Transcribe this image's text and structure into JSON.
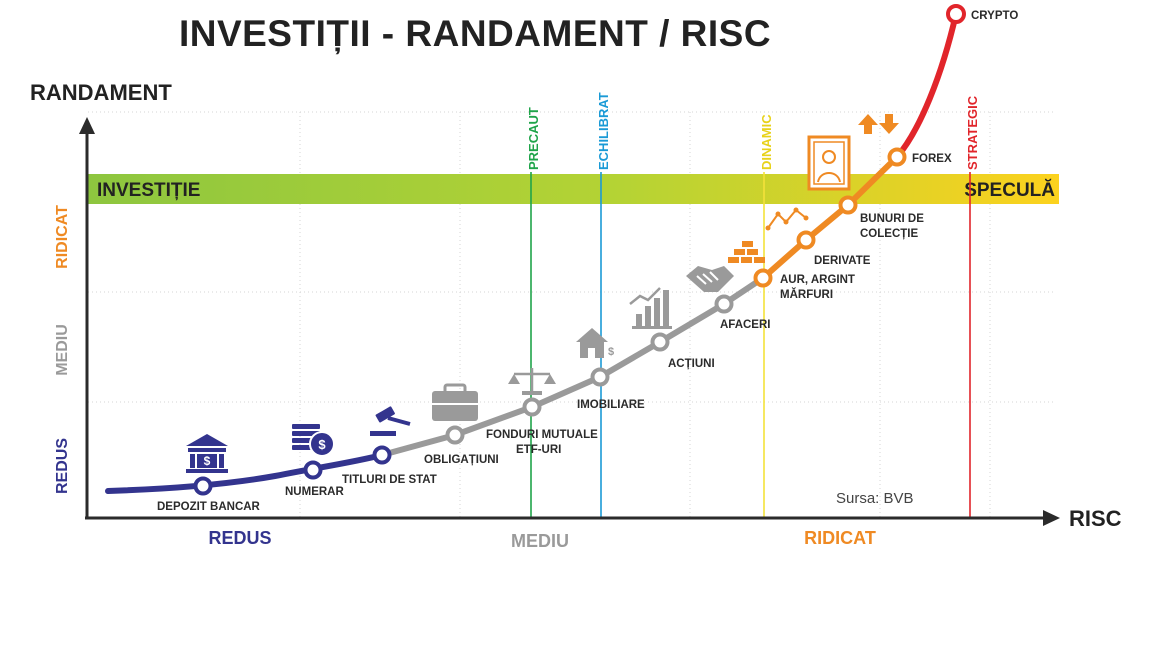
{
  "title": "INVESTIȚII - RANDAMENT / RISC",
  "axes": {
    "y_title": "RANDAMENT",
    "x_title": "RISC"
  },
  "band": {
    "left_label": "INVESTIȚIE",
    "right_label": "SPECULĂ"
  },
  "x_levels": [
    "REDUS",
    "MEDIU",
    "RIDICAT"
  ],
  "y_levels": [
    "REDUS",
    "MEDIU",
    "RIDICAT"
  ],
  "profiles": [
    "PRECAUT",
    "ECHILIBRAT",
    "DINAMIC",
    "STRATEGIC"
  ],
  "colors": {
    "low": "#33348e",
    "mid": "#9a9a9a",
    "high": "#ef8a23",
    "crypto": "#e1252b",
    "band_green": "#8dc63f",
    "band_yellow": "#fcd21e",
    "precaut": "#1fa44a",
    "echilibrat": "#1a9ad6",
    "dinamic": "#f4e23a",
    "strategic": "#e1252b"
  },
  "steps": [
    {
      "label": [
        "DEPOZIT BANCAR"
      ],
      "icon": "bank-icon"
    },
    {
      "label": [
        "NUMERAR"
      ],
      "icon": "cash-icon"
    },
    {
      "label": [
        "TITLURI DE STAT"
      ],
      "icon": "gavel-icon"
    },
    {
      "label": [
        "OBLIGAȚIUNI"
      ],
      "icon": "briefcase-icon"
    },
    {
      "label": [
        "FONDURI MUTUALE",
        "ETF-URI"
      ],
      "icon": "scales-icon"
    },
    {
      "label": [
        "IMOBILIARE"
      ],
      "icon": "house-icon"
    },
    {
      "label": [
        "ACȚIUNI"
      ],
      "icon": "stock-chart-icon"
    },
    {
      "label": [
        "AFACERI"
      ],
      "icon": "handshake-icon"
    },
    {
      "label": [
        "AUR, ARGINT",
        "MĂRFURI"
      ],
      "icon": "gold-bars-icon"
    },
    {
      "label": [
        "DERIVATE"
      ],
      "icon": "zigzag-chart-icon"
    },
    {
      "label": [
        "BUNURI DE",
        "COLECȚIE"
      ],
      "icon": "painting-icon"
    },
    {
      "label": [
        "FOREX"
      ],
      "icon": "exchange-arrows-icon"
    },
    {
      "label": [
        "CRYPTO"
      ],
      "icon": ""
    }
  ],
  "source": "Sursa: BVB"
}
